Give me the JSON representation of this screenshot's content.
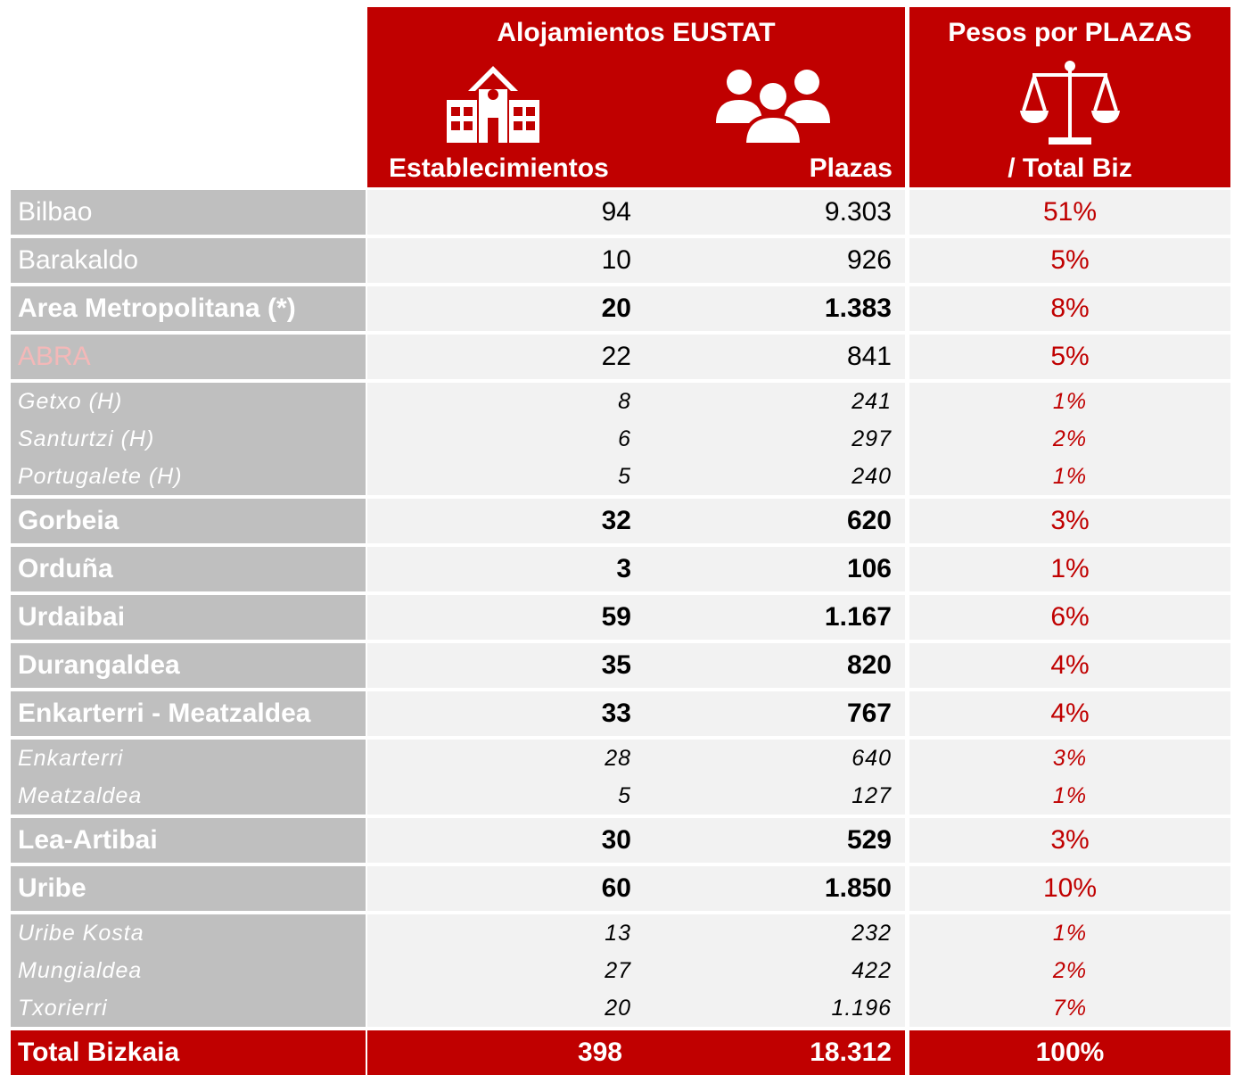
{
  "header": {
    "group_title": "Alojamientos EUSTAT",
    "weight_title": "Pesos por PLAZAS",
    "col_establecimientos": "Establecimientos",
    "col_plazas": "Plazas",
    "col_weight": "/ Total Biz"
  },
  "blocks": [
    {
      "rows": [
        {
          "name": "Bilbao",
          "establecimientos": "94",
          "plazas": "9.303",
          "peso": "51%"
        }
      ]
    },
    {
      "rows": [
        {
          "name": "Barakaldo",
          "establecimientos": "10",
          "plazas": "926",
          "peso": "5%"
        }
      ]
    },
    {
      "bold": true,
      "rows": [
        {
          "name": "Area Metropolitana (*)",
          "establecimientos": "20",
          "plazas": "1.383",
          "peso": "8%"
        }
      ]
    },
    {
      "name_color": "#f4b8b8",
      "rows": [
        {
          "name": "ABRA",
          "establecimientos": "22",
          "plazas": "841",
          "peso": "5%"
        }
      ]
    },
    {
      "rows": [
        {
          "name": "Getxo (H)",
          "establecimientos": "8",
          "plazas": "241",
          "peso": "1%"
        },
        {
          "name": "Santurtzi (H)",
          "establecimientos": "6",
          "plazas": "297",
          "peso": "2%"
        },
        {
          "name": "Portugalete (H)",
          "establecimientos": "5",
          "plazas": "240",
          "peso": "1%"
        }
      ]
    },
    {
      "bold": true,
      "rows": [
        {
          "name": "Gorbeia",
          "establecimientos": "32",
          "plazas": "620",
          "peso": "3%"
        }
      ]
    },
    {
      "bold": true,
      "rows": [
        {
          "name": "Orduña",
          "establecimientos": "3",
          "plazas": "106",
          "peso": "1%"
        }
      ]
    },
    {
      "bold": true,
      "rows": [
        {
          "name": "Urdaibai",
          "establecimientos": "59",
          "plazas": "1.167",
          "peso": "6%"
        }
      ]
    },
    {
      "bold": true,
      "rows": [
        {
          "name": "Durangaldea",
          "establecimientos": "35",
          "plazas": "820",
          "peso": "4%"
        }
      ]
    },
    {
      "bold": true,
      "rows": [
        {
          "name": "Enkarterri - Meatzaldea",
          "establecimientos": "33",
          "plazas": "767",
          "peso": "4%"
        }
      ]
    },
    {
      "rows": [
        {
          "name": "Enkarterri",
          "establecimientos": "28",
          "plazas": "640",
          "peso": "3%"
        },
        {
          "name": "Meatzaldea",
          "establecimientos": "5",
          "plazas": "127",
          "peso": "1%"
        }
      ]
    },
    {
      "bold": true,
      "rows": [
        {
          "name": "Lea-Artibai",
          "establecimientos": "30",
          "plazas": "529",
          "peso": "3%"
        }
      ]
    },
    {
      "bold": true,
      "rows": [
        {
          "name": "Uribe",
          "establecimientos": "60",
          "plazas": "1.850",
          "peso": "10%"
        }
      ]
    },
    {
      "rows": [
        {
          "name": "Uribe Kosta",
          "establecimientos": "13",
          "plazas": "232",
          "peso": "1%"
        },
        {
          "name": "Mungialdea",
          "establecimientos": "27",
          "plazas": "422",
          "peso": "2%"
        },
        {
          "name": "Txorierri",
          "establecimientos": "20",
          "plazas": "1.196",
          "peso": "7%"
        }
      ]
    }
  ],
  "total": {
    "name": "Total Bizkaia",
    "establecimientos": "398",
    "plazas": "18.312",
    "peso": "100%"
  }
}
